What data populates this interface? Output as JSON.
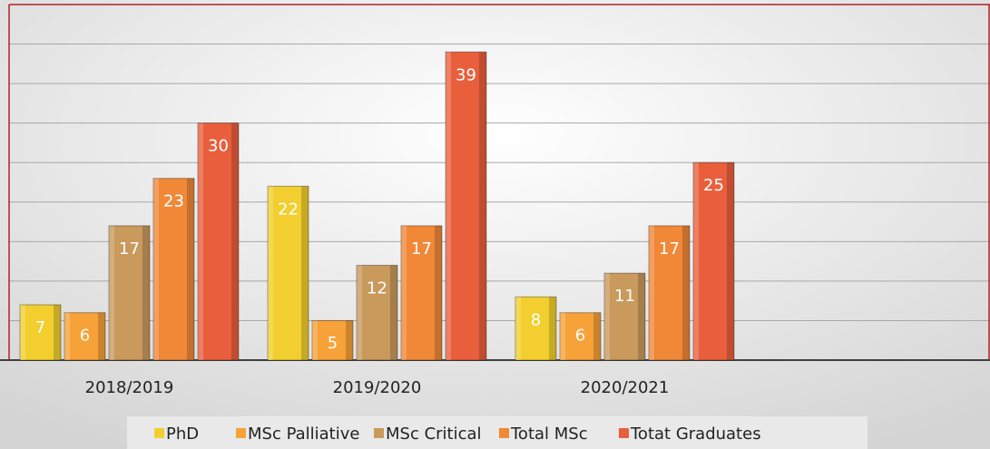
{
  "chart_data": {
    "type": "bar",
    "categories": [
      "2018/2019",
      "2019/2020",
      "2020/2021",
      null
    ],
    "series": [
      {
        "name": "PhD",
        "color": "#f2cf2e",
        "values": [
          7,
          22,
          8,
          null
        ]
      },
      {
        "name": "MSc Palliative",
        "color": "#f7a238",
        "values": [
          6,
          5,
          6,
          null
        ]
      },
      {
        "name": "MSc Critical",
        "color": "#c99a5c",
        "values": [
          17,
          12,
          11,
          null
        ]
      },
      {
        "name": "Total MSc",
        "color": "#f08838",
        "values": [
          23,
          17,
          17,
          null
        ]
      },
      {
        "name": "Totat Graduates",
        "color": "#e95f3c",
        "values": [
          30,
          39,
          25,
          null
        ]
      }
    ],
    "ylim": [
      0,
      45
    ],
    "yticks": [
      0,
      5,
      10,
      15,
      20,
      25,
      30,
      35,
      40,
      45
    ],
    "grid": true,
    "legend": "bottom"
  }
}
